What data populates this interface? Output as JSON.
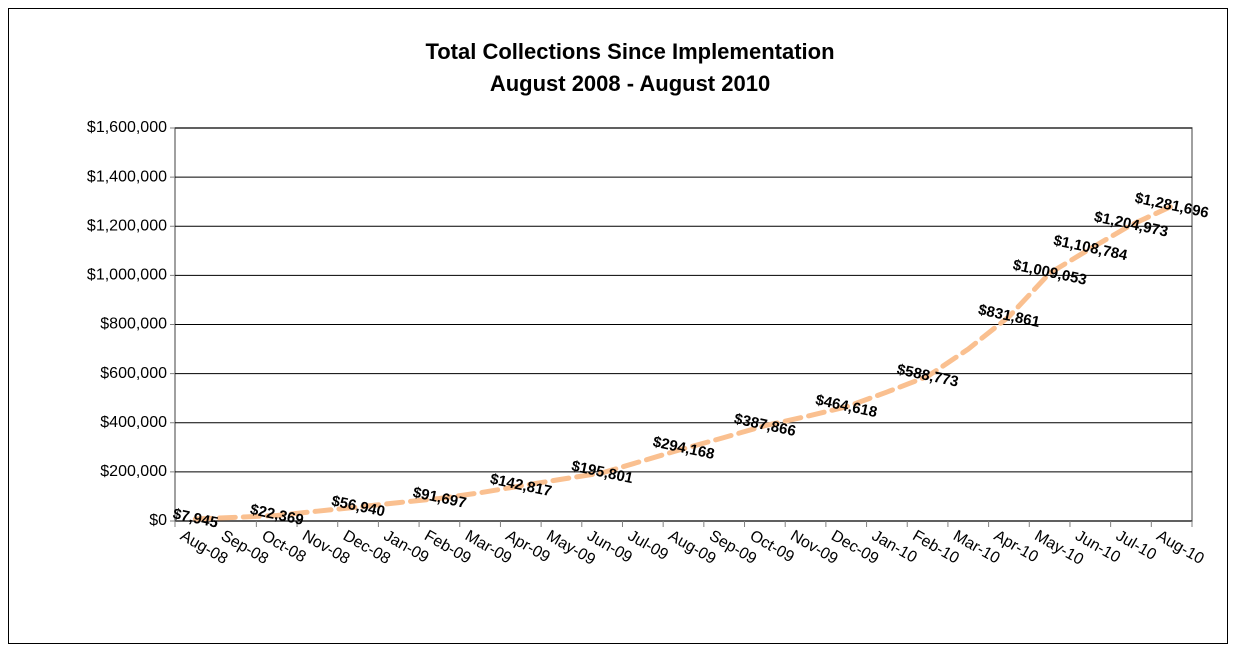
{
  "chart_data": {
    "type": "line",
    "title": "Total Collections Since Implementation",
    "subtitle": "August 2008 - August 2010",
    "categories": [
      "Aug-08",
      "Sep-08",
      "Oct-08",
      "Nov-08",
      "Dec-08",
      "Jan-09",
      "Feb-09",
      "Mar-09",
      "Apr-09",
      "May-09",
      "Jun-09",
      "Jul-09",
      "Aug-09",
      "Sep-09",
      "Oct-09",
      "Nov-09",
      "Dec-09",
      "Jan-10",
      "Feb-10",
      "Mar-10",
      "Apr-10",
      "May-10",
      "Jun-10",
      "Jul-10",
      "Aug-10"
    ],
    "series": [
      {
        "name": "Total Collections",
        "color": "#fac090",
        "values": [
          7945,
          15000,
          22369,
          40000,
          56940,
          75000,
          91697,
          115000,
          142817,
          170000,
          195801,
          245000,
          294168,
          340000,
          387866,
          425000,
          464618,
          525000,
          588773,
          700000,
          831861,
          1009053,
          1108784,
          1204973,
          1281696
        ],
        "value_labels": [
          "$7,945",
          null,
          "$22,369",
          null,
          "$56,940",
          null,
          "$91,697",
          null,
          "$142,817",
          null,
          "$195,801",
          null,
          "$294,168",
          null,
          "$387,866",
          null,
          "$464,618",
          null,
          "$588,773",
          null,
          "$831,861",
          "$1,009,053",
          "$1,108,784",
          "$1,204,973",
          "$1,281,696"
        ]
      }
    ],
    "ylim": [
      0,
      1600000
    ],
    "yticks": [
      {
        "value": 0,
        "label": "$0"
      },
      {
        "value": 200000,
        "label": "$200,000"
      },
      {
        "value": 400000,
        "label": "$400,000"
      },
      {
        "value": 600000,
        "label": "$600,000"
      },
      {
        "value": 800000,
        "label": "$800,000"
      },
      {
        "value": 1000000,
        "label": "$1,000,000"
      },
      {
        "value": 1200000,
        "label": "$1,200,000"
      },
      {
        "value": 1400000,
        "label": "$1,400,000"
      },
      {
        "value": 1600000,
        "label": "$1,600,000"
      }
    ],
    "grid": true
  }
}
